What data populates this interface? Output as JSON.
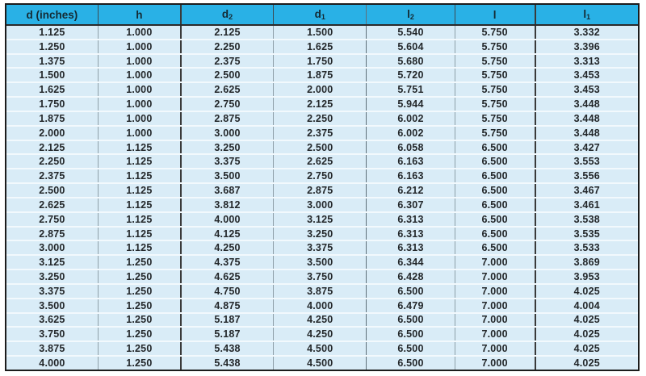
{
  "colors": {
    "header_bg": "#29b1e6",
    "header_text": "#142a33",
    "row_bg": "#d9ecf7",
    "row_separator": "#f2f9fd",
    "outer_border": "#1c1c1c",
    "column_line": "#8fa0aa",
    "column_line_strong": "#3a3a3a",
    "body_text": "#23272a"
  },
  "table": {
    "columns": [
      {
        "id": "d",
        "label": "d (inches)",
        "sub": ""
      },
      {
        "id": "h",
        "label": "h",
        "sub": ""
      },
      {
        "id": "d2",
        "label": "d",
        "sub": "2"
      },
      {
        "id": "d1",
        "label": "d",
        "sub": "1"
      },
      {
        "id": "l2",
        "label": "l",
        "sub": "2"
      },
      {
        "id": "l",
        "label": "l",
        "sub": ""
      },
      {
        "id": "l1",
        "label": "l",
        "sub": "1"
      }
    ],
    "rows": [
      [
        "1.125",
        "1.000",
        "2.125",
        "1.500",
        "5.540",
        "5.750",
        "3.332"
      ],
      [
        "1.250",
        "1.000",
        "2.250",
        "1.625",
        "5.604",
        "5.750",
        "3.396"
      ],
      [
        "1.375",
        "1.000",
        "2.375",
        "1.750",
        "5.680",
        "5.750",
        "3.313"
      ],
      [
        "1.500",
        "1.000",
        "2.500",
        "1.875",
        "5.720",
        "5.750",
        "3.453"
      ],
      [
        "1.625",
        "1.000",
        "2.625",
        "2.000",
        "5.751",
        "5.750",
        "3.453"
      ],
      [
        "1.750",
        "1.000",
        "2.750",
        "2.125",
        "5.944",
        "5.750",
        "3.448"
      ],
      [
        "1.875",
        "1.000",
        "2.875",
        "2.250",
        "6.002",
        "5.750",
        "3.448"
      ],
      [
        "2.000",
        "1.000",
        "3.000",
        "2.375",
        "6.002",
        "5.750",
        "3.448"
      ],
      [
        "2.125",
        "1.125",
        "3.250",
        "2.500",
        "6.058",
        "6.500",
        "3.427"
      ],
      [
        "2.250",
        "1.125",
        "3.375",
        "2.625",
        "6.163",
        "6.500",
        "3.553"
      ],
      [
        "2.375",
        "1.125",
        "3.500",
        "2.750",
        "6.163",
        "6.500",
        "3.556"
      ],
      [
        "2.500",
        "1.125",
        "3.687",
        "2.875",
        "6.212",
        "6.500",
        "3.467"
      ],
      [
        "2.625",
        "1.125",
        "3.812",
        "3.000",
        "6.307",
        "6.500",
        "3.461"
      ],
      [
        "2.750",
        "1.125",
        "4.000",
        "3.125",
        "6.313",
        "6.500",
        "3.538"
      ],
      [
        "2.875",
        "1.125",
        "4.125",
        "3.250",
        "6.313",
        "6.500",
        "3.535"
      ],
      [
        "3.000",
        "1.125",
        "4.250",
        "3.375",
        "6.313",
        "6.500",
        "3.533"
      ],
      [
        "3.125",
        "1.250",
        "4.375",
        "3.500",
        "6.344",
        "7.000",
        "3.869"
      ],
      [
        "3.250",
        "1.250",
        "4.625",
        "3.750",
        "6.428",
        "7.000",
        "3.953"
      ],
      [
        "3.375",
        "1.250",
        "4.750",
        "3.875",
        "6.500",
        "7.000",
        "4.025"
      ],
      [
        "3.500",
        "1.250",
        "4.875",
        "4.000",
        "6.479",
        "7.000",
        "4.004"
      ],
      [
        "3.625",
        "1.250",
        "5.187",
        "4.250",
        "6.500",
        "7.000",
        "4.025"
      ],
      [
        "3.750",
        "1.250",
        "5.187",
        "4.250",
        "6.500",
        "7.000",
        "4.025"
      ],
      [
        "3.875",
        "1.250",
        "5.438",
        "4.500",
        "6.500",
        "7.000",
        "4.025"
      ],
      [
        "4.000",
        "1.250",
        "5.438",
        "4.500",
        "6.500",
        "7.000",
        "4.025"
      ]
    ]
  }
}
